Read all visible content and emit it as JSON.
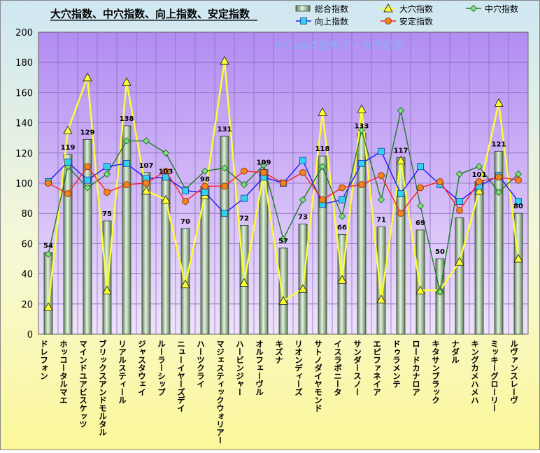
{
  "chart_data": {
    "type": "bar",
    "title": "大穴指数、中穴指数、向上指数、安定指数",
    "watermark": "©Caniの競馬データ研究室",
    "categories": [
      "ドレフォン",
      "ホッコータルマエ",
      "マインドユアビスケッツ",
      "ブリックスアンドモルタル",
      "リアルスティール",
      "ジャスタウェイ",
      "ルーラーシップ",
      "ニューイヤーズデイ",
      "ハーツクライ",
      "マジェスティックウォリアー",
      "ハービンジャー",
      "オルフェーヴル",
      "キズナ",
      "リオンディーズ",
      "サトノダイヤモンド",
      "イスラボニータ",
      "サンダースノー",
      "エピファネイア",
      "ドゥラメンテ",
      "ロードカナロア",
      "キタサンブラック",
      "ナダル",
      "キングカメハメハ",
      "ミッキーグローリー",
      "ルヴァンスレーヴ"
    ],
    "ylim": [
      0,
      200
    ],
    "yticks": [
      0,
      20,
      40,
      60,
      80,
      100,
      120,
      140,
      160,
      180,
      200
    ],
    "grid": true,
    "legend_position": "top-right",
    "series": [
      {
        "name": "総合指数",
        "kind": "bar",
        "color": "#9fc09a",
        "values": [
          54,
          119,
          129,
          75,
          138,
          107,
          103,
          70,
          98,
          131,
          72,
          109,
          57,
          73,
          118,
          66,
          133,
          71,
          117,
          69,
          50,
          77,
          101,
          121,
          80
        ],
        "labels": [
          "54",
          "119",
          "129",
          "75",
          "138",
          "107",
          "103",
          "70",
          "98",
          "131",
          "72",
          "109",
          "57",
          "73",
          "118",
          "66",
          "133",
          "71",
          "117",
          "69",
          "50",
          "",
          "101",
          "121",
          "80"
        ]
      },
      {
        "name": "大穴指数",
        "kind": "line",
        "color": "#ffff33",
        "marker": "triangle",
        "values": [
          18,
          135,
          170,
          29,
          167,
          95,
          89,
          33,
          92,
          181,
          34,
          107,
          22,
          30,
          147,
          36,
          149,
          23,
          115,
          29,
          29,
          48,
          95,
          153,
          50
        ]
      },
      {
        "name": "中穴指数",
        "kind": "line",
        "color": "#1e7a2a",
        "marker": "diamond",
        "values": [
          53,
          111,
          97,
          106,
          128,
          128,
          120,
          96,
          108,
          110,
          99,
          112,
          63,
          89,
          111,
          78,
          135,
          89,
          148,
          85,
          28,
          106,
          111,
          94,
          106
        ]
      },
      {
        "name": "向上指数",
        "kind": "line",
        "color": "#1a1aff",
        "marker": "square",
        "values": [
          101,
          114,
          102,
          111,
          113,
          103,
          104,
          95,
          94,
          80,
          90,
          104,
          100,
          115,
          86,
          89,
          113,
          121,
          93,
          111,
          99,
          88,
          98,
          105,
          88
        ]
      },
      {
        "name": "安定指数",
        "kind": "line",
        "color": "#ff2020",
        "marker": "circle",
        "values": [
          100,
          93,
          111,
          94,
          99,
          100,
          108,
          88,
          98,
          98,
          108,
          107,
          100,
          107,
          89,
          97,
          99,
          105,
          80,
          97,
          101,
          82,
          101,
          104,
          102
        ]
      }
    ]
  }
}
